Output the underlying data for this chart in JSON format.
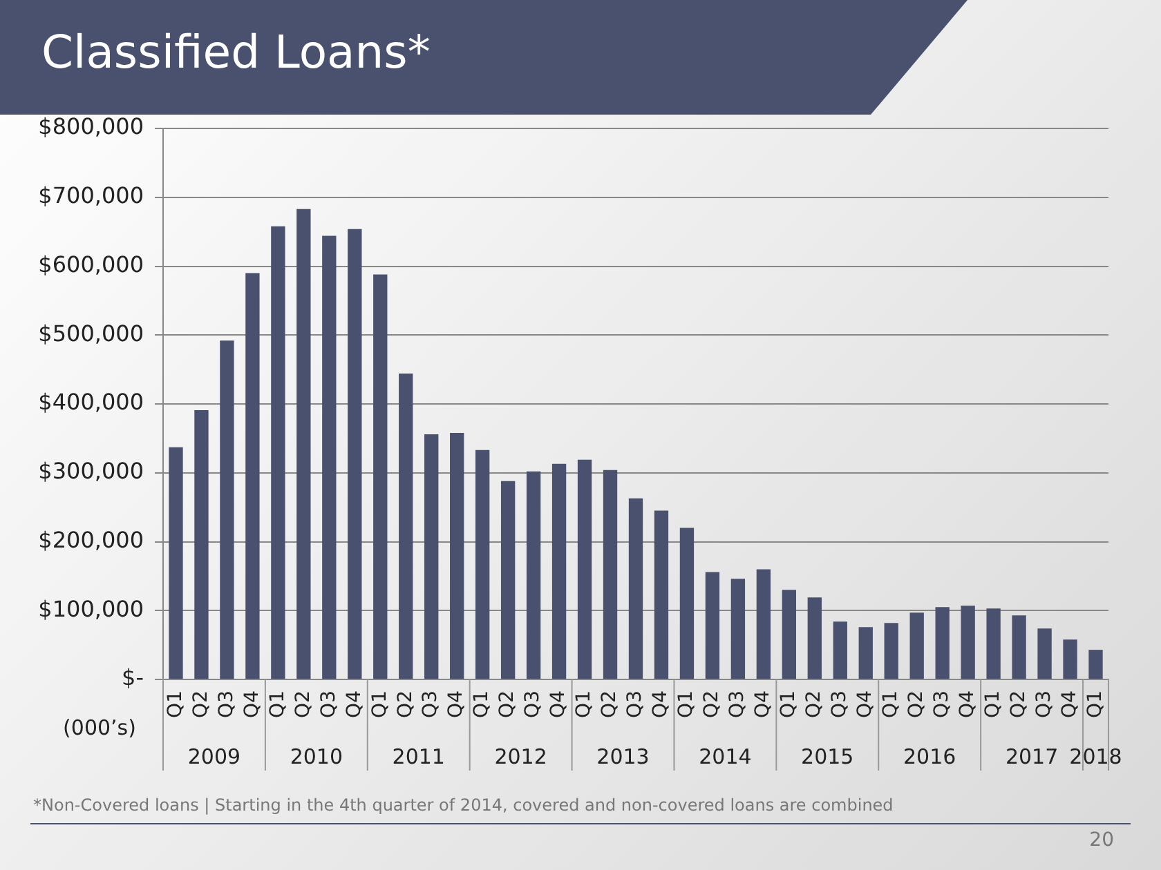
{
  "chart_data": {
    "type": "bar",
    "title": "Classified Loans*",
    "ylabel": "(000’s)",
    "categories": [
      "Q1",
      "Q2",
      "Q3",
      "Q4",
      "Q1",
      "Q2",
      "Q3",
      "Q4",
      "Q1",
      "Q2",
      "Q3",
      "Q4",
      "Q1",
      "Q2",
      "Q3",
      "Q4",
      "Q1",
      "Q2",
      "Q3",
      "Q4",
      "Q1",
      "Q2",
      "Q3",
      "Q4",
      "Q1",
      "Q2",
      "Q3",
      "Q4",
      "Q1",
      "Q2",
      "Q3",
      "Q4",
      "Q1",
      "Q2",
      "Q3",
      "Q4",
      "Q1"
    ],
    "values": [
      337000,
      391000,
      492000,
      590000,
      658000,
      683000,
      644000,
      654000,
      588000,
      444000,
      356000,
      358000,
      333000,
      288000,
      302000,
      313000,
      319000,
      304000,
      263000,
      245000,
      220000,
      156000,
      146000,
      160000,
      130000,
      119000,
      84000,
      76000,
      82000,
      97000,
      105000,
      107000,
      103000,
      93000,
      74000,
      58000,
      43000
    ],
    "color": "#4a516e",
    "ylim": [
      0,
      800000
    ],
    "yticks": [
      {
        "value": 0,
        "label": "$-"
      },
      {
        "value": 100000,
        "label": "$100,000"
      },
      {
        "value": 200000,
        "label": "$200,000"
      },
      {
        "value": 300000,
        "label": "$300,000"
      },
      {
        "value": 400000,
        "label": "$400,000"
      },
      {
        "value": 500000,
        "label": "$500,000"
      },
      {
        "value": 600000,
        "label": "$600,000"
      },
      {
        "value": 700000,
        "label": "$700,000"
      },
      {
        "value": 800000,
        "label": "$800,000"
      }
    ],
    "grid": "y",
    "legend": false,
    "annotations": [
      "2009",
      "2010",
      "2011",
      "2012",
      "2013",
      "2014",
      "2015",
      "2016",
      "2017",
      "2018",
      "*Non-Covered loans | Starting in the 4th quarter of 2014, covered and non-covered loans are combined",
      "20"
    ]
  }
}
